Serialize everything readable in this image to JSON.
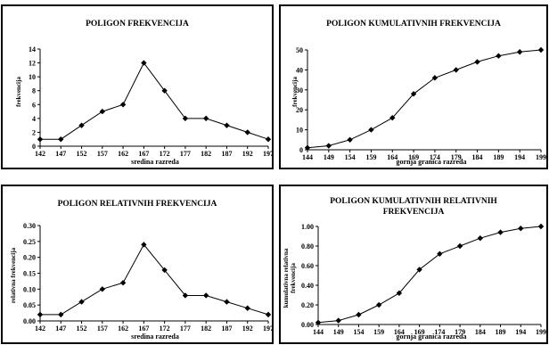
{
  "chart_data": [
    {
      "type": "line",
      "title": "POLIGON FREKVENCIJA",
      "xlabel": "sredina razreda",
      "ylabel": "frekvencija",
      "x": [
        "142",
        "147",
        "152",
        "157",
        "162",
        "167",
        "172",
        "177",
        "182",
        "187",
        "192",
        "197"
      ],
      "values": [
        1,
        1,
        3,
        5,
        6,
        12,
        8,
        4,
        4,
        3,
        2,
        1
      ],
      "ylim": [
        0,
        14
      ],
      "yticks": [
        "0",
        "2",
        "4",
        "6",
        "8",
        "10",
        "12",
        "14"
      ],
      "grid": false,
      "marker": "diamond"
    },
    {
      "type": "line",
      "title": "POLIGON  KUMULATIVNIH FREKVENCIJA",
      "xlabel": "gornja granica razreda",
      "ylabel": "frekvencija",
      "x": [
        "144",
        "149",
        "154",
        "159",
        "164",
        "169",
        "174",
        "179",
        "184",
        "189",
        "194",
        "199"
      ],
      "values": [
        1,
        2,
        5,
        10,
        16,
        28,
        36,
        40,
        44,
        47,
        49,
        50
      ],
      "ylim": [
        0,
        50
      ],
      "yticks": [
        "0",
        "10",
        "20",
        "30",
        "40",
        "50"
      ],
      "grid": false,
      "marker": "diamond"
    },
    {
      "type": "line",
      "title": "POLIGON  RELATIVNIH FREKVENCIJA",
      "xlabel": "sredina razreda",
      "ylabel": "relativna frekvencija",
      "x": [
        "142",
        "147",
        "152",
        "157",
        "162",
        "167",
        "172",
        "177",
        "182",
        "187",
        "192",
        "197"
      ],
      "values": [
        0.02,
        0.02,
        0.06,
        0.1,
        0.12,
        0.24,
        0.16,
        0.08,
        0.08,
        0.06,
        0.04,
        0.02
      ],
      "ylim": [
        0,
        0.3
      ],
      "yticks": [
        "0.00",
        "0.05",
        "0.10",
        "0.15",
        "0.20",
        "0.25",
        "0.30"
      ],
      "grid": false,
      "marker": "diamond"
    },
    {
      "type": "line",
      "title": "POLIGON  KUMULATIVNIH RELATIVNIH FREKVENCIJA",
      "xlabel": "gornja granica razreda",
      "ylabel": "kumulativna relativna frekvencija",
      "x": [
        "144",
        "149",
        "154",
        "159",
        "164",
        "169",
        "174",
        "179",
        "184",
        "189",
        "194",
        "199"
      ],
      "values": [
        0.02,
        0.04,
        0.1,
        0.2,
        0.32,
        0.56,
        0.72,
        0.8,
        0.88,
        0.94,
        0.98,
        1.0
      ],
      "ylim": [
        0,
        1.0
      ],
      "yticks": [
        "0.00",
        "0.20",
        "0.40",
        "0.60",
        "0.80",
        "1.00"
      ],
      "grid": false,
      "marker": "diamond"
    }
  ],
  "panels": [
    {
      "title_lines": [
        "POLIGON FREKVENCIJA"
      ],
      "ylabel_lines": [
        "frekvencija"
      ]
    },
    {
      "title_lines": [
        "POLIGON  KUMULATIVNIH FREKVENCIJA"
      ],
      "ylabel_lines": [
        "frekvencija"
      ]
    },
    {
      "title_lines": [
        "POLIGON  RELATIVNIH FREKVENCIJA"
      ],
      "ylabel_lines": [
        "relativna frekvencija"
      ]
    },
    {
      "title_lines": [
        "POLIGON  KUMULATIVNIH RELATIVNIH",
        "FREKVENCIJA"
      ],
      "ylabel_lines": [
        "kumulativna relativna",
        "frekvencija"
      ]
    }
  ]
}
